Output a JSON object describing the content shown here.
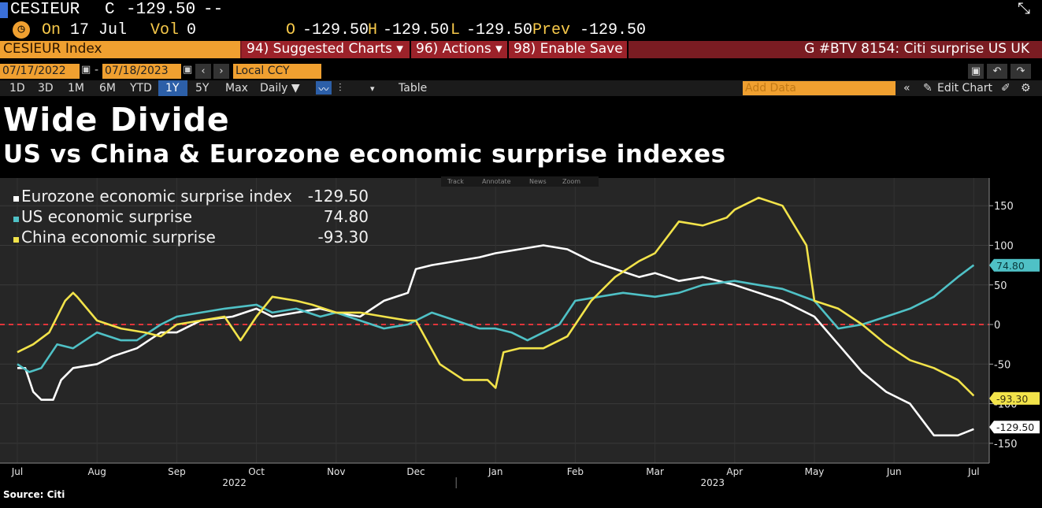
{
  "ticker": {
    "symbol": "CESIEUR",
    "close_label": "C",
    "close_value": "-129.50",
    "change": "--"
  },
  "quote": {
    "on_label": "On",
    "date": "17 Jul",
    "vol_label": "Vol",
    "vol_value": "0",
    "o_label": "O",
    "o_value": "-129.50",
    "h_label": "H",
    "h_value": "-129.50",
    "l_label": "L",
    "l_value": "-129.50",
    "prev_label": "Prev",
    "prev_value": "-129.50"
  },
  "menubar": {
    "index_label": "CESIEUR Index",
    "suggested": "94) Suggested Charts ▾",
    "actions": "96) Actions ▾",
    "enable_save": "98) Enable Save",
    "story": "G #BTV 8154: Citi surprise US UK"
  },
  "daterow": {
    "start": "07/17/2022",
    "end": "07/18/2023",
    "currency": "Local CCY"
  },
  "rangerow": {
    "ranges": [
      "1D",
      "3D",
      "1M",
      "6M",
      "YTD",
      "1Y",
      "5Y",
      "Max"
    ],
    "frequency": "Daily ▼",
    "table": "Table",
    "add_data": "Add Data",
    "edit_chart": "Edit Chart"
  },
  "toolbar_hint": {
    "track": "Track",
    "annotate": "Annotate",
    "news": "News",
    "zoom": "Zoom"
  },
  "source": "Source: Citi",
  "colors": {
    "eurozone": "#ffffff",
    "us": "#4fc1c6",
    "china": "#f2e34a",
    "zero": "#e0353a",
    "amber": "#f0a030"
  },
  "chart_data": {
    "type": "line",
    "title": "Wide Divide",
    "subtitle": "US vs China & Eurozone economic surprise indexes",
    "ylim": [
      -175,
      185
    ],
    "yticks": [
      150,
      100,
      50,
      0,
      -50,
      -100,
      -150
    ],
    "grid": true,
    "legend_position": "top-left",
    "x_months": [
      "Jul",
      "Aug",
      "Sep",
      "Oct",
      "Nov",
      "Dec",
      "Jan",
      "Feb",
      "Mar",
      "Apr",
      "May",
      "Jun",
      "Jul"
    ],
    "x_years": [
      "2022",
      "2023"
    ],
    "series": [
      {
        "name": "Eurozone economic surprise index",
        "last": "-129.50",
        "color": "#ffffff",
        "x": [
          0,
          0.1,
          0.2,
          0.3,
          0.45,
          0.55,
          0.7,
          1,
          1.2,
          1.5,
          1.8,
          2,
          2.3,
          2.7,
          3,
          3.2,
          3.5,
          3.8,
          4,
          4.3,
          4.6,
          4.9,
          5,
          5.2,
          5.5,
          5.8,
          6,
          6.3,
          6.6,
          6.9,
          7.2,
          7.5,
          7.8,
          8,
          8.3,
          8.6,
          9,
          9.3,
          9.6,
          10,
          10.3,
          10.6,
          10.9,
          11.2,
          11.5,
          11.8,
          12
        ],
        "values": [
          -55,
          -55,
          -85,
          -95,
          -95,
          -70,
          -55,
          -50,
          -40,
          -30,
          -10,
          -10,
          5,
          10,
          20,
          10,
          15,
          20,
          15,
          10,
          30,
          40,
          70,
          75,
          80,
          85,
          90,
          95,
          100,
          95,
          80,
          70,
          60,
          65,
          55,
          60,
          50,
          40,
          30,
          10,
          -25,
          -60,
          -85,
          -100,
          -140,
          -140,
          -132
        ]
      },
      {
        "name": "US economic surprise",
        "last": "74.80",
        "color": "#4fc1c6",
        "x": [
          0,
          0.15,
          0.3,
          0.5,
          0.7,
          1,
          1.3,
          1.5,
          1.8,
          2,
          2.3,
          2.6,
          3,
          3.2,
          3.5,
          3.8,
          4,
          4.3,
          4.6,
          4.9,
          5.2,
          5.5,
          5.8,
          6,
          6.2,
          6.4,
          6.6,
          6.8,
          7,
          7.3,
          7.6,
          8,
          8.3,
          8.6,
          9,
          9.3,
          9.6,
          10,
          10.3,
          10.6,
          10.9,
          11.2,
          11.5,
          11.8,
          12
        ],
        "values": [
          -50,
          -60,
          -55,
          -25,
          -30,
          -10,
          -20,
          -20,
          0,
          10,
          15,
          20,
          25,
          15,
          20,
          10,
          15,
          5,
          -5,
          0,
          15,
          5,
          -5,
          -5,
          -10,
          -20,
          -10,
          0,
          30,
          35,
          40,
          35,
          40,
          50,
          55,
          50,
          45,
          30,
          -5,
          0,
          10,
          20,
          35,
          60,
          75
        ]
      },
      {
        "name": "China economic surprise",
        "last": "-93.30",
        "color": "#f2e34a",
        "x": [
          0,
          0.2,
          0.4,
          0.6,
          0.7,
          0.75,
          1,
          1.3,
          1.6,
          1.8,
          2,
          2.3,
          2.6,
          2.8,
          3,
          3.2,
          3.5,
          3.7,
          4,
          4.3,
          4.6,
          4.9,
          5,
          5.3,
          5.6,
          5.9,
          6,
          6.1,
          6.3,
          6.6,
          6.9,
          7.2,
          7.5,
          7.8,
          8,
          8.3,
          8.6,
          8.9,
          9,
          9.3,
          9.6,
          9.9,
          10,
          10.3,
          10.6,
          10.9,
          11.2,
          11.5,
          11.8,
          12
        ],
        "values": [
          -35,
          -25,
          -10,
          30,
          40,
          35,
          5,
          -5,
          -10,
          -15,
          0,
          5,
          10,
          -20,
          10,
          35,
          30,
          25,
          15,
          15,
          10,
          5,
          5,
          -50,
          -70,
          -70,
          -80,
          -35,
          -30,
          -30,
          -15,
          30,
          60,
          80,
          90,
          130,
          125,
          135,
          145,
          160,
          150,
          100,
          30,
          20,
          0,
          -25,
          -45,
          -55,
          -70,
          -90
        ]
      }
    ],
    "badges": [
      {
        "value": "74.80",
        "y": 74.8,
        "bg": "#4fc1c6",
        "fg": "#0a3a3c"
      },
      {
        "value": "-93.30",
        "y": -93.3,
        "bg": "#f2e34a",
        "fg": "#3a3410"
      },
      {
        "value": "-129.50",
        "y": -129.5,
        "bg": "#ffffff",
        "fg": "#111111"
      }
    ]
  }
}
